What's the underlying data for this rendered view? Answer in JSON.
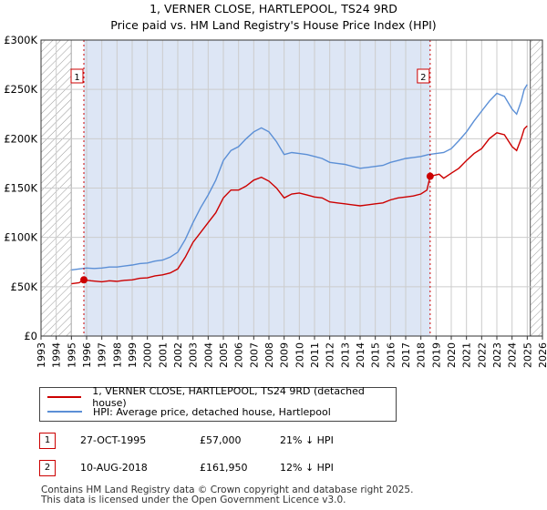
{
  "chart_data": {
    "type": "line",
    "title": "1, VERNER CLOSE, HARTLEPOOL, TS24 9RD",
    "subtitle": "Price paid vs. HM Land Registry's House Price Index (HPI)",
    "xlim": [
      1993,
      2026
    ],
    "ylim": [
      0,
      300000
    ],
    "x_ticks": [
      "1993",
      "1994",
      "1995",
      "1996",
      "1997",
      "1998",
      "1999",
      "2000",
      "2001",
      "2002",
      "2003",
      "2004",
      "2005",
      "2006",
      "2007",
      "2008",
      "2009",
      "2010",
      "2011",
      "2012",
      "2013",
      "2014",
      "2015",
      "2016",
      "2017",
      "2018",
      "2019",
      "2020",
      "2021",
      "2022",
      "2023",
      "2024",
      "2025",
      "2026"
    ],
    "y_ticks": [
      {
        "value": 0,
        "label": "£0"
      },
      {
        "value": 50000,
        "label": "£50K"
      },
      {
        "value": 100000,
        "label": "£100K"
      },
      {
        "value": 150000,
        "label": "£150K"
      },
      {
        "value": 200000,
        "label": "£200K"
      },
      {
        "value": 250000,
        "label": "£250K"
      },
      {
        "value": 300000,
        "label": "£300K"
      }
    ],
    "hatched_ranges": [
      [
        1993,
        1995.0
      ],
      [
        2025.2,
        2026
      ]
    ],
    "shaded_range": [
      1995.82,
      2018.61
    ],
    "series": [
      {
        "name": "1, VERNER CLOSE, HARTLEPOOL, TS24 9RD (detached house)",
        "color": "#cc0000",
        "x": [
          1995.0,
          1995.5,
          1995.82,
          1996.3,
          1997.0,
          1997.5,
          1998.0,
          1998.5,
          1999.0,
          1999.5,
          2000.0,
          2000.5,
          2001.0,
          2001.5,
          2002.0,
          2002.5,
          2003.0,
          2003.5,
          2004.0,
          2004.5,
          2005.0,
          2005.5,
          2006.0,
          2006.5,
          2007.0,
          2007.5,
          2008.0,
          2008.5,
          2009.0,
          2009.5,
          2010.0,
          2010.5,
          2011.0,
          2011.5,
          2012.0,
          2012.5,
          2013.0,
          2013.5,
          2014.0,
          2014.5,
          2015.0,
          2015.5,
          2016.0,
          2016.5,
          2017.0,
          2017.5,
          2018.0,
          2018.4,
          2018.61,
          2018.9,
          2019.2,
          2019.5,
          2020.0,
          2020.5,
          2021.0,
          2021.5,
          2022.0,
          2022.5,
          2023.0,
          2023.5,
          2024.0,
          2024.3,
          2024.6,
          2024.8,
          2025.0
        ],
        "values": [
          53000,
          54000,
          57000,
          56000,
          55000,
          56000,
          55500,
          56500,
          57000,
          58500,
          59000,
          61000,
          62000,
          64000,
          68000,
          80000,
          95000,
          105000,
          115000,
          125000,
          140000,
          148000,
          148000,
          152000,
          158000,
          161000,
          157000,
          150000,
          140000,
          144000,
          145000,
          143000,
          141000,
          140000,
          136000,
          135000,
          134000,
          133000,
          132000,
          133000,
          134000,
          135000,
          138000,
          140000,
          141000,
          142000,
          144000,
          148000,
          161950,
          163000,
          164000,
          160000,
          165000,
          170000,
          178000,
          185000,
          190000,
          200000,
          206000,
          204000,
          192000,
          188000,
          200000,
          210000,
          213000
        ]
      },
      {
        "name": "HPI: Average price, detached house, Hartlepool",
        "color": "#5b8fd6",
        "x": [
          1995.0,
          1995.5,
          1996.0,
          1996.5,
          1997.0,
          1997.5,
          1998.0,
          1998.5,
          1999.0,
          1999.5,
          2000.0,
          2000.5,
          2001.0,
          2001.5,
          2002.0,
          2002.5,
          2003.0,
          2003.5,
          2004.0,
          2004.5,
          2005.0,
          2005.5,
          2006.0,
          2006.5,
          2007.0,
          2007.5,
          2008.0,
          2008.5,
          2009.0,
          2009.5,
          2010.0,
          2010.5,
          2011.0,
          2011.5,
          2012.0,
          2012.5,
          2013.0,
          2013.5,
          2014.0,
          2014.5,
          2015.0,
          2015.5,
          2016.0,
          2016.5,
          2017.0,
          2017.5,
          2018.0,
          2018.5,
          2019.0,
          2019.5,
          2020.0,
          2020.5,
          2021.0,
          2021.5,
          2022.0,
          2022.5,
          2023.0,
          2023.5,
          2024.0,
          2024.3,
          2024.6,
          2024.8,
          2025.0
        ],
        "values": [
          67000,
          68000,
          69000,
          68500,
          69000,
          70000,
          70000,
          71000,
          72000,
          73500,
          74000,
          76000,
          77000,
          80000,
          85000,
          98000,
          115000,
          130000,
          143000,
          158000,
          178000,
          188000,
          192000,
          200000,
          207000,
          211000,
          207000,
          197000,
          184000,
          186000,
          185000,
          184000,
          182000,
          180000,
          176000,
          175000,
          174000,
          172000,
          170000,
          171000,
          172000,
          173000,
          176000,
          178000,
          180000,
          181000,
          182000,
          184000,
          185000,
          186000,
          190000,
          198000,
          207000,
          218000,
          228000,
          238000,
          246000,
          243000,
          230000,
          225000,
          238000,
          250000,
          255000
        ]
      }
    ],
    "annotations": [
      {
        "label": "1",
        "x": 1995.82,
        "y": 57000
      },
      {
        "label": "2",
        "x": 2018.61,
        "y": 161950
      }
    ]
  },
  "legend": {
    "red_label": "1, VERNER CLOSE, HARTLEPOOL, TS24 9RD (detached house)",
    "blue_label": "HPI: Average price, detached house, Hartlepool"
  },
  "transactions": [
    {
      "num": "1",
      "date": "27-OCT-1995",
      "price": "£57,000",
      "hpi": "21% ↓ HPI"
    },
    {
      "num": "2",
      "date": "10-AUG-2018",
      "price": "£161,950",
      "hpi": "12% ↓ HPI"
    }
  ],
  "footer": {
    "line1": "Contains HM Land Registry data © Crown copyright and database right 2025.",
    "line2": "This data is licensed under the Open Government Licence v3.0."
  },
  "colors": {
    "red": "#cc0000",
    "blue": "#5b8fd6",
    "shade": "#dde6f5",
    "grid": "#cccccc"
  }
}
